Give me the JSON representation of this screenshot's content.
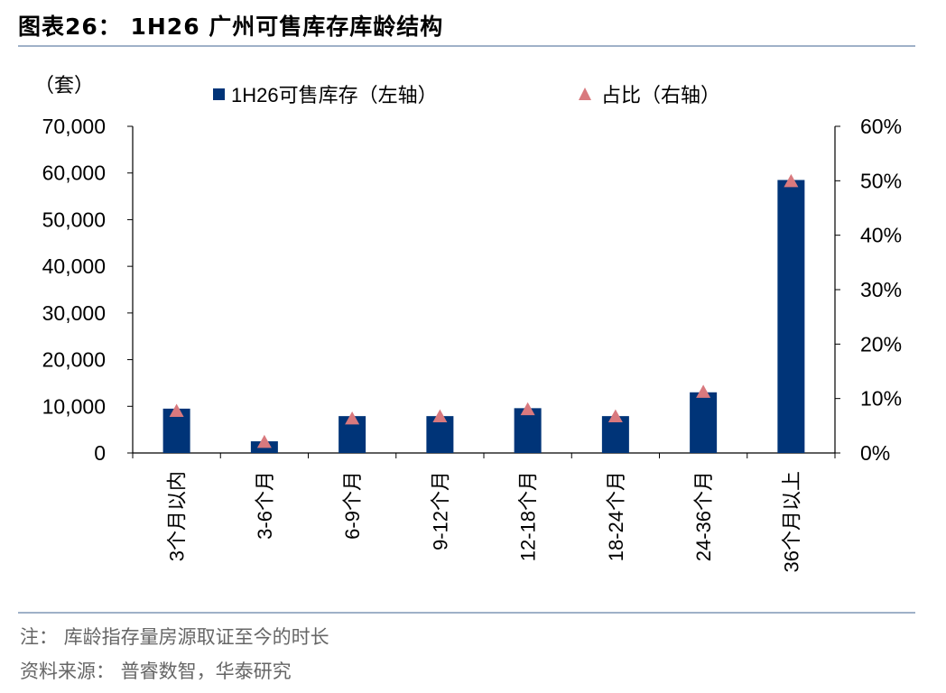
{
  "figure": {
    "title": "图表26：  1H26 广州可售库存库龄结构",
    "note": "注：  库龄指存量房源取证至今的时长",
    "source": "资料来源：  普睿数智，华泰研究"
  },
  "chart_data": {
    "type": "bar",
    "unit_left": "（套）",
    "categories": [
      "3个月以内",
      "3-6个月",
      "6-9个月",
      "9-12个月",
      "12-18个月",
      "18-24个月",
      "24-36个月",
      "36个月以上"
    ],
    "series": [
      {
        "name": "1H26可售库存（左轴）",
        "type": "bar",
        "axis": "left",
        "color": "#003478",
        "values": [
          9500,
          2500,
          7900,
          7900,
          9600,
          7900,
          13000,
          58500
        ]
      },
      {
        "name": "占比（右轴）",
        "type": "scatter",
        "marker": "triangle",
        "axis": "right",
        "color": "#d9797e",
        "values": [
          7.7,
          2.0,
          6.3,
          6.7,
          8.0,
          6.7,
          11.2,
          49.9
        ]
      }
    ],
    "y_left": {
      "ylim": [
        0,
        70000
      ],
      "ticks": [
        "0",
        "10,000",
        "20,000",
        "30,000",
        "40,000",
        "50,000",
        "60,000",
        "70,000"
      ]
    },
    "y_right": {
      "ylim": [
        0,
        60
      ],
      "ticks": [
        "0%",
        "10%",
        "20%",
        "30%",
        "40%",
        "50%",
        "60%"
      ]
    },
    "legend": "top",
    "grid": false
  }
}
